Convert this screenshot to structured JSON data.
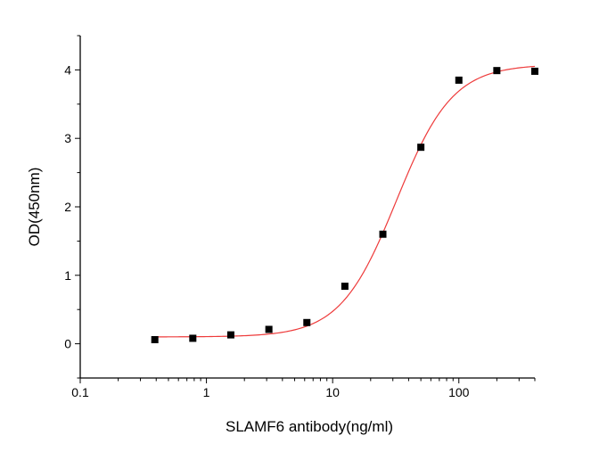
{
  "chart_data": {
    "type": "scatter",
    "title": "",
    "xlabel": "SLAMF6 antibody(ng/ml)",
    "ylabel": "OD(450nm)",
    "x_scale": "log",
    "xlim": [
      0.1,
      400
    ],
    "ylim": [
      -0.5,
      4.5
    ],
    "x_ticks": [
      0.1,
      1,
      10,
      100
    ],
    "x_tick_labels": [
      "0.1",
      "1",
      "10",
      "100"
    ],
    "y_ticks": [
      0,
      1,
      2,
      3,
      4
    ],
    "y_tick_labels": [
      "0",
      "1",
      "2",
      "3",
      "4"
    ],
    "grid": false,
    "legend": "none",
    "series": [
      {
        "name": "SLAMF6 antibody",
        "marker": "square",
        "color": "#000000",
        "x": [
          0.39,
          0.78,
          1.56,
          3.125,
          6.25,
          12.5,
          25,
          50,
          100,
          200,
          400
        ],
        "y": [
          0.06,
          0.08,
          0.13,
          0.21,
          0.31,
          0.84,
          1.6,
          2.87,
          3.85,
          3.99,
          3.98
        ]
      }
    ],
    "fit_curve": {
      "name": "4PL fit",
      "color": "#ee3b3b",
      "x_range": [
        0.39,
        400
      ],
      "bottom": 0.1,
      "top": 4.08,
      "ec50": 32,
      "hill": 1.95
    }
  }
}
